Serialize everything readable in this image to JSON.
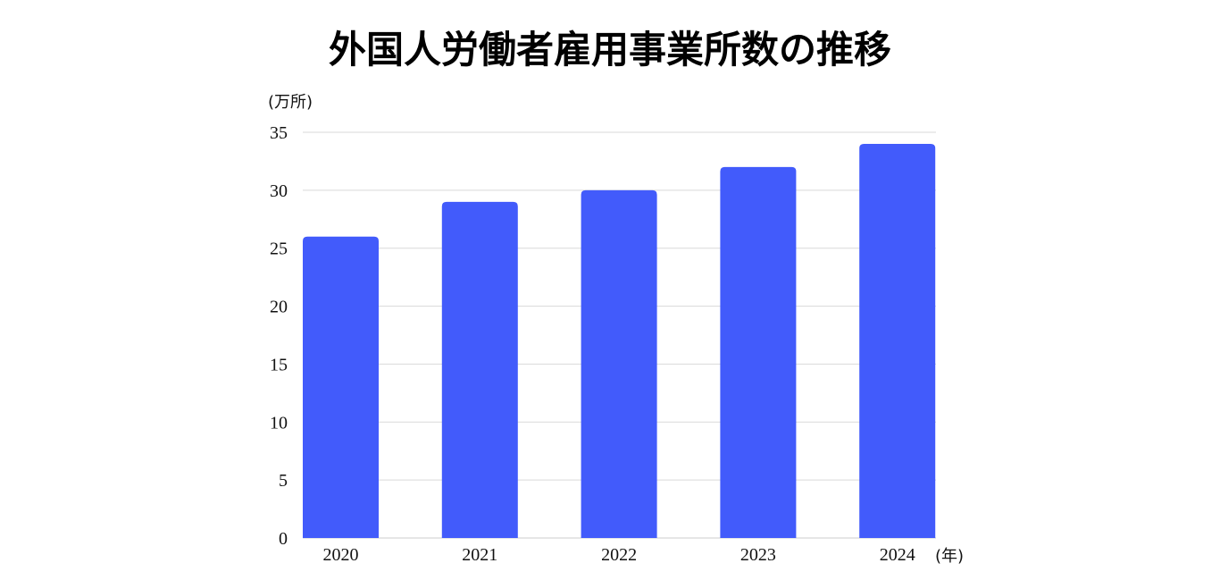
{
  "chart_data": {
    "type": "bar",
    "title": "外国人労働者雇用事業所数の推移",
    "ylabel": "(万所)",
    "xlabel": "(年)",
    "categories": [
      "2020",
      "2021",
      "2022",
      "2023",
      "2024"
    ],
    "values": [
      26,
      29,
      30,
      32,
      34
    ],
    "ylim": [
      0,
      35
    ],
    "yticks": [
      0,
      5,
      10,
      15,
      20,
      25,
      30,
      35
    ],
    "grid": true,
    "legend": "none",
    "colors": {
      "bar": "#425BFB",
      "grid": "#d9d9d9",
      "axis": "#cccccc"
    }
  }
}
